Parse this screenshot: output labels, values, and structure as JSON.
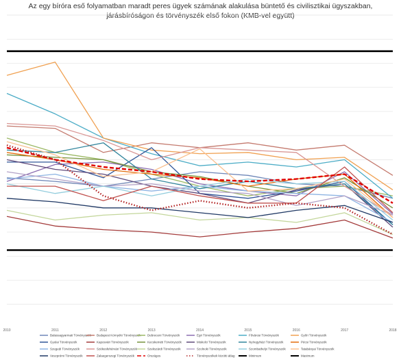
{
  "chart_data": {
    "type": "line",
    "title": [
      "Az egy bíróra eső folyamatban maradt peres ügyek számának alakulása büntető és civilisztikai ügyszakban,",
      "járásbíróságon és törvényszék első fokon (KMB-vel együtt)"
    ],
    "xlabel": "",
    "ylabel": "",
    "categories": [
      "2010",
      "2011",
      "2012",
      "2013",
      "2014",
      "2015",
      "2016",
      "2017",
      "2018"
    ],
    "y_axis_labels_shown": false,
    "grid": "horizontal",
    "legend_position": "bottom",
    "series": [
      {
        "name": "Balassagyarmati Törvényszék",
        "color": "#6e86b8",
        "dash": "solid",
        "values": [
          125,
          122,
          118,
          124,
          130,
          127,
          120,
          118,
          108
        ]
      },
      {
        "name": "Budapest Környéki Törvényszék",
        "color": "#c47a6e",
        "dash": "solid",
        "values": [
          168,
          166,
          146,
          154,
          150,
          154,
          148,
          152,
          127
        ]
      },
      {
        "name": "Debreceni Törvényszék",
        "color": "#9bb864",
        "dash": "solid",
        "values": [
          158,
          146,
          140,
          128,
          118,
          110,
          116,
          118,
          110
        ]
      },
      {
        "name": "Egri Törvényszék",
        "color": "#8b6cb0",
        "dash": "solid",
        "values": [
          122,
          136,
          138,
          132,
          120,
          114,
          110,
          130,
          95
        ]
      },
      {
        "name": "Fővárosi Törvényszék",
        "color": "#4bacc6",
        "dash": "solid",
        "values": [
          195,
          178,
          158,
          145,
          135,
          138,
          134,
          140,
          108
        ]
      },
      {
        "name": "Győri Törvényszék",
        "color": "#f0a050",
        "dash": "solid",
        "values": [
          210,
          221,
          158,
          148,
          145,
          146,
          140,
          142,
          115
        ]
      },
      {
        "name": "Gyulai Törvényszék",
        "color": "#2f5597",
        "dash": "solid",
        "values": [
          138,
          138,
          125,
          150,
          112,
          108,
          114,
          122,
          86
        ]
      },
      {
        "name": "Kaposvári Törvényszék",
        "color": "#a33a3a",
        "dash": "solid",
        "values": [
          93,
          85,
          82,
          80,
          76,
          80,
          83,
          90,
          75
        ]
      },
      {
        "name": "Kecskeméti Törvényszék",
        "color": "#76933c",
        "dash": "solid",
        "values": [
          144,
          142,
          140,
          130,
          126,
          118,
          112,
          125,
          100
        ]
      },
      {
        "name": "Miskolci Törvényszék",
        "color": "#604a7b",
        "dash": "solid",
        "values": [
          140,
          132,
          128,
          118,
          112,
          104,
          115,
          120,
          84
        ]
      },
      {
        "name": "Nyíregyházi Törvényszék",
        "color": "#31859c",
        "dash": "solid",
        "values": [
          148,
          146,
          154,
          124,
          116,
          122,
          116,
          120,
          86
        ]
      },
      {
        "name": "Pécsi Törvényszék",
        "color": "#e46c0a",
        "dash": "solid",
        "values": [
          146,
          140,
          132,
          128,
          125,
          118,
          124,
          128,
          92
        ]
      },
      {
        "name": "Szegedi Törvényszék",
        "color": "#8eb4e3",
        "dash": "solid",
        "values": [
          124,
          128,
          118,
          114,
          118,
          114,
          112,
          110,
          88
        ]
      },
      {
        "name": "Székesfehérvári Törvényszék",
        "color": "#d99694",
        "dash": "solid",
        "values": [
          170,
          168,
          156,
          140,
          150,
          148,
          146,
          118,
          94
        ]
      },
      {
        "name": "Szekszárdi Törvényszék",
        "color": "#c3d69b",
        "dash": "solid",
        "values": [
          98,
          90,
          94,
          96,
          90,
          92,
          88,
          96,
          78
        ]
      },
      {
        "name": "Szolnoki Törvényszék",
        "color": "#b3a2c7",
        "dash": "solid",
        "values": [
          130,
          124,
          118,
          120,
          114,
          112,
          102,
          110,
          94
        ]
      },
      {
        "name": "Szombathelyi Törvényszék",
        "color": "#93cddd",
        "dash": "solid",
        "values": [
          120,
          112,
          118,
          110,
          118,
          124,
          120,
          122,
          90
        ]
      },
      {
        "name": "Tatabányai Törvényszék",
        "color": "#fac090",
        "dash": "solid",
        "values": [
          155,
          144,
          126,
          130,
          149,
          114,
          116,
          124,
          92
        ]
      },
      {
        "name": "Veszprémi Törvényszék",
        "color": "#1f3864",
        "dash": "solid",
        "values": [
          108,
          105,
          100,
          100,
          96,
          92,
          98,
          102,
          88
        ]
      },
      {
        "name": "Zalaegerszegi Törvényszék",
        "color": "#c0504d",
        "dash": "solid",
        "values": [
          118,
          118,
          106,
          118,
          110,
          104,
          104,
          134,
          96
        ]
      },
      {
        "name": "Országos",
        "color": "#e00000",
        "dash": "dashed",
        "values": [
          150,
          140,
          134,
          130,
          124,
          122,
          124,
          128,
          104
        ]
      },
      {
        "name": "Törvényszékek közötti átlag",
        "color": "#b22222",
        "dash": "dotted",
        "values": [
          152,
          140,
          110,
          98,
          106,
          100,
          104,
          100,
          78
        ]
      },
      {
        "name": "Minimum",
        "color": "#000000",
        "dash": "solid",
        "values": [
          65,
          65,
          65,
          65,
          65,
          65,
          65,
          65,
          65
        ]
      },
      {
        "name": "Maximum",
        "color": "#000000",
        "dash": "solid",
        "values": [
          230,
          230,
          230,
          230,
          230,
          230,
          230,
          230,
          230
        ]
      }
    ]
  }
}
